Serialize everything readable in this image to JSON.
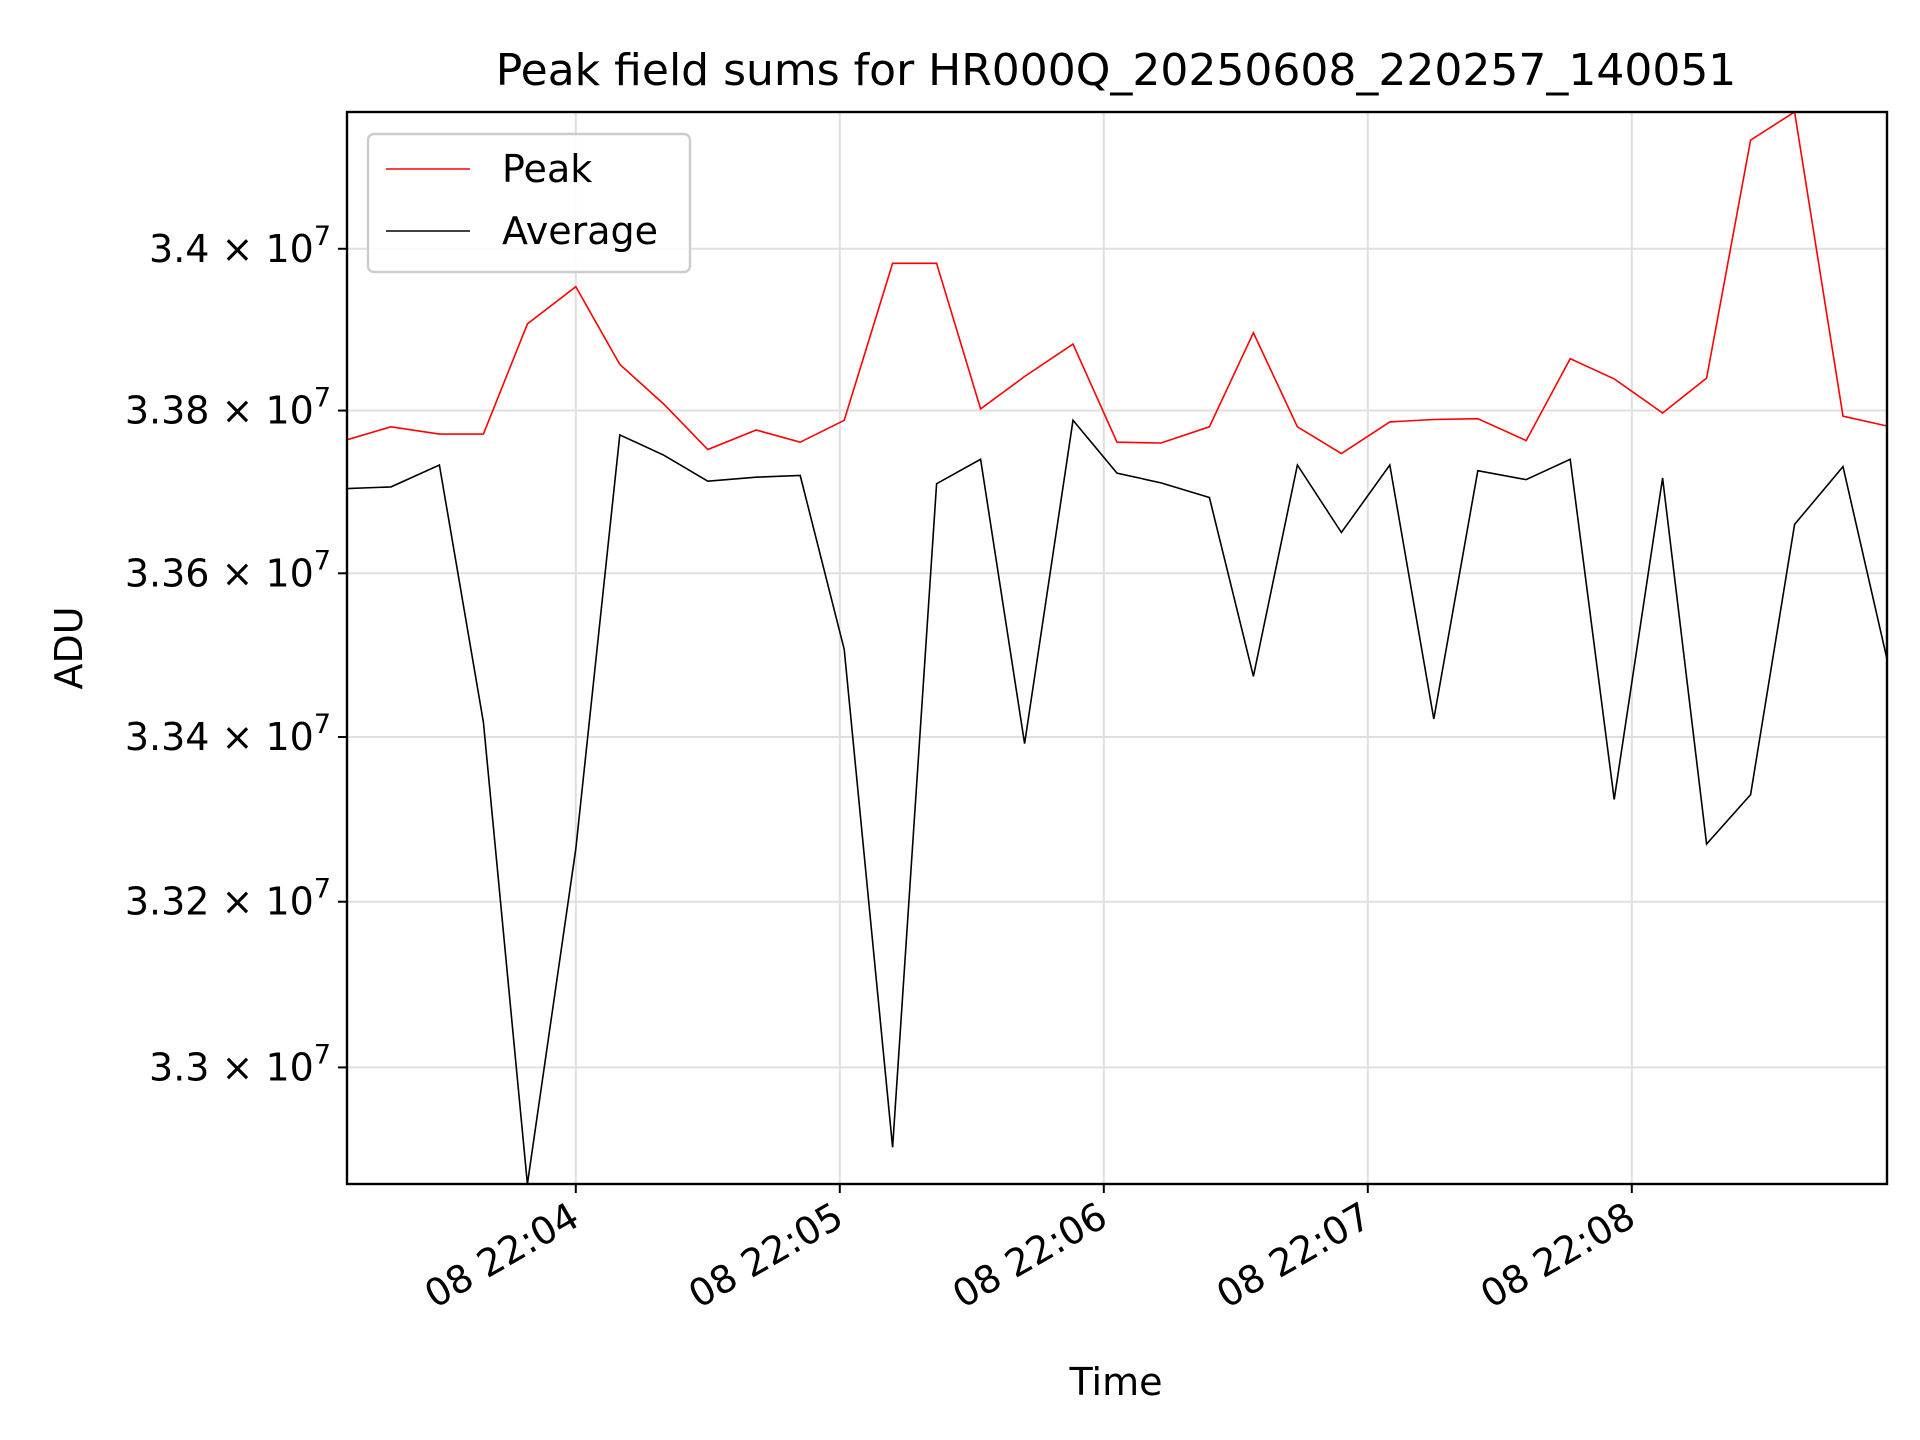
{
  "chart_data": {
    "type": "line",
    "title": "Peak field sums for HR000Q_20250608_220257_140051",
    "xlabel": "Time",
    "ylabel": "ADU",
    "x_ticks": [
      "08 22:04",
      "08 22:05",
      "08 22:06",
      "08 22:07",
      "08 22:08"
    ],
    "y_ticks": [
      {
        "value": 33000000,
        "mant": "3.3",
        "exp": "7"
      },
      {
        "value": 33200000,
        "mant": "3.32",
        "exp": "7"
      },
      {
        "value": 33400000,
        "mant": "3.34",
        "exp": "7"
      },
      {
        "value": 33600000,
        "mant": "3.36",
        "exp": "7"
      },
      {
        "value": 33800000,
        "mant": "3.38",
        "exp": "7"
      },
      {
        "value": 34000000,
        "mant": "3.4",
        "exp": "7"
      }
    ],
    "times_on_x_axis": [
      "22:03:08",
      "22:03:18",
      "22:03:29",
      "22:03:39",
      "22:03:49",
      "22:04:00",
      "22:04:10",
      "22:04:20",
      "22:04:30",
      "22:04:41",
      "22:04:51",
      "22:05:01",
      "22:05:12",
      "22:05:22",
      "22:05:32",
      "22:05:42",
      "22:05:53",
      "22:06:03",
      "22:06:13",
      "22:06:24",
      "22:06:34",
      "22:06:44",
      "22:06:54",
      "22:07:05",
      "22:07:15",
      "22:07:25",
      "22:07:36",
      "22:07:46",
      "22:07:56",
      "22:08:07",
      "22:08:17",
      "22:08:27",
      "22:08:37",
      "22:08:48",
      "22:08:58"
    ],
    "xlim": [
      "22:03:08",
      "22:08:58"
    ],
    "ylim": [
      32860000,
      34170000
    ],
    "grid": true,
    "legend": "top-left",
    "series": [
      {
        "name": "Peak",
        "color": "#ff0000",
        "values": [
          33764000,
          33780000,
          33771000,
          33771000,
          33907000,
          33953000,
          33857000,
          33808000,
          33752000,
          33776000,
          33761000,
          33788000,
          33982000,
          33982000,
          33802000,
          33842000,
          33882000,
          33761000,
          33760000,
          33780000,
          33896000,
          33780000,
          33747000,
          33786000,
          33789000,
          33790000,
          33763000,
          33864000,
          33839000,
          33797000,
          33840000,
          34135000,
          34170000,
          33793000,
          33781000
        ]
      },
      {
        "name": "Average",
        "color": "#000000",
        "values": [
          33704000,
          33706000,
          33733000,
          33418000,
          32860000,
          33264000,
          33770000,
          33745000,
          33713000,
          33718000,
          33720000,
          33507000,
          32904000,
          33710000,
          33740000,
          33392000,
          33788000,
          33723000,
          33711000,
          33693000,
          33474000,
          33733000,
          33650000,
          33733000,
          33422000,
          33726000,
          33715000,
          33740000,
          33324000,
          33717000,
          33270000,
          33330000,
          33660000,
          33731000,
          33495000
        ]
      }
    ]
  }
}
